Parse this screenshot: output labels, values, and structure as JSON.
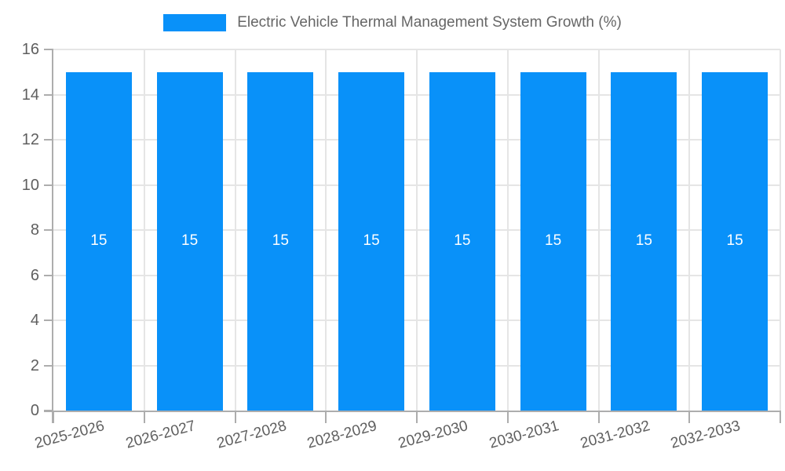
{
  "legend": {
    "label": "Electric Vehicle Thermal Management System Growth (%)",
    "swatch_color": "#0991f9"
  },
  "chart_data": {
    "type": "bar",
    "title": "",
    "categories": [
      "2025-2026",
      "2026-2027",
      "2027-2028",
      "2028-2029",
      "2029-2030",
      "2030-2031",
      "2031-2032",
      "2032-2033"
    ],
    "series": [
      {
        "name": "Electric Vehicle Thermal Management System Growth (%)",
        "values": [
          15,
          15,
          15,
          15,
          15,
          15,
          15,
          15
        ]
      }
    ],
    "bar_labels": [
      "15",
      "15",
      "15",
      "15",
      "15",
      "15",
      "15",
      "15"
    ],
    "xlabel": "",
    "ylabel": "",
    "ylim": [
      0,
      16
    ],
    "yticks": [
      0,
      2,
      4,
      6,
      8,
      10,
      12,
      14,
      16
    ],
    "grid": true,
    "legend_position": "top-center",
    "x_label_rotation": -15,
    "colors": {
      "bar": "#0991f9",
      "bar_label": "#ffffff",
      "grid": "#e5e5e5",
      "axis": "#adadad",
      "tick_text": "#5f5f5f",
      "legend_text": "#666666",
      "background": "#ffffff"
    }
  }
}
